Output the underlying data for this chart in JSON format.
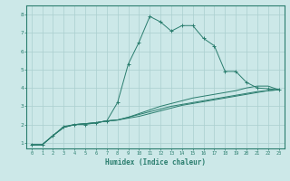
{
  "xlabel": "Humidex (Indice chaleur)",
  "ylabel": "",
  "bg_color": "#cce8e8",
  "grid_color": "#aacfcf",
  "line_color": "#2a7d6e",
  "xlim": [
    -0.5,
    23.5
  ],
  "ylim": [
    0.7,
    8.5
  ],
  "xticks": [
    0,
    1,
    2,
    3,
    4,
    5,
    6,
    7,
    8,
    9,
    10,
    11,
    12,
    13,
    14,
    15,
    16,
    17,
    18,
    19,
    20,
    21,
    22,
    23
  ],
  "yticks": [
    1,
    2,
    3,
    4,
    5,
    6,
    7,
    8
  ],
  "series1": [
    [
      0,
      0.9
    ],
    [
      1,
      0.9
    ],
    [
      2,
      1.4
    ],
    [
      3,
      1.9
    ],
    [
      4,
      2.0
    ],
    [
      5,
      2.0
    ],
    [
      6,
      2.1
    ],
    [
      7,
      2.2
    ],
    [
      8,
      3.2
    ],
    [
      9,
      5.3
    ],
    [
      10,
      6.5
    ],
    [
      11,
      7.9
    ],
    [
      12,
      7.6
    ],
    [
      13,
      7.1
    ],
    [
      14,
      7.4
    ],
    [
      15,
      7.4
    ],
    [
      16,
      6.7
    ],
    [
      17,
      6.3
    ],
    [
      18,
      4.9
    ],
    [
      19,
      4.9
    ],
    [
      20,
      4.3
    ],
    [
      21,
      4.0
    ],
    [
      22,
      3.95
    ],
    [
      23,
      3.9
    ]
  ],
  "series2": [
    [
      0,
      0.9
    ],
    [
      1,
      0.9
    ],
    [
      2,
      1.4
    ],
    [
      3,
      1.85
    ],
    [
      4,
      2.0
    ],
    [
      5,
      2.05
    ],
    [
      6,
      2.1
    ],
    [
      7,
      2.2
    ],
    [
      8,
      2.25
    ],
    [
      9,
      2.35
    ],
    [
      10,
      2.45
    ],
    [
      11,
      2.6
    ],
    [
      12,
      2.75
    ],
    [
      13,
      2.9
    ],
    [
      14,
      3.05
    ],
    [
      15,
      3.15
    ],
    [
      16,
      3.25
    ],
    [
      17,
      3.35
    ],
    [
      18,
      3.45
    ],
    [
      19,
      3.55
    ],
    [
      20,
      3.65
    ],
    [
      21,
      3.75
    ],
    [
      22,
      3.85
    ],
    [
      23,
      3.9
    ]
  ],
  "series3": [
    [
      0,
      0.9
    ],
    [
      1,
      0.9
    ],
    [
      2,
      1.4
    ],
    [
      3,
      1.85
    ],
    [
      4,
      2.0
    ],
    [
      5,
      2.05
    ],
    [
      6,
      2.1
    ],
    [
      7,
      2.2
    ],
    [
      8,
      2.25
    ],
    [
      9,
      2.4
    ],
    [
      10,
      2.6
    ],
    [
      11,
      2.8
    ],
    [
      12,
      3.0
    ],
    [
      13,
      3.15
    ],
    [
      14,
      3.3
    ],
    [
      15,
      3.45
    ],
    [
      16,
      3.55
    ],
    [
      17,
      3.65
    ],
    [
      18,
      3.75
    ],
    [
      19,
      3.85
    ],
    [
      20,
      4.0
    ],
    [
      21,
      4.1
    ],
    [
      22,
      4.1
    ],
    [
      23,
      3.9
    ]
  ],
  "series4": [
    [
      0,
      0.9
    ],
    [
      1,
      0.9
    ],
    [
      2,
      1.4
    ],
    [
      3,
      1.85
    ],
    [
      4,
      2.0
    ],
    [
      5,
      2.05
    ],
    [
      6,
      2.1
    ],
    [
      7,
      2.2
    ],
    [
      8,
      2.25
    ],
    [
      9,
      2.4
    ],
    [
      10,
      2.55
    ],
    [
      11,
      2.7
    ],
    [
      12,
      2.85
    ],
    [
      13,
      3.0
    ],
    [
      14,
      3.1
    ],
    [
      15,
      3.2
    ],
    [
      16,
      3.3
    ],
    [
      17,
      3.4
    ],
    [
      18,
      3.5
    ],
    [
      19,
      3.6
    ],
    [
      20,
      3.7
    ],
    [
      21,
      3.8
    ],
    [
      22,
      3.85
    ],
    [
      23,
      3.9
    ]
  ]
}
